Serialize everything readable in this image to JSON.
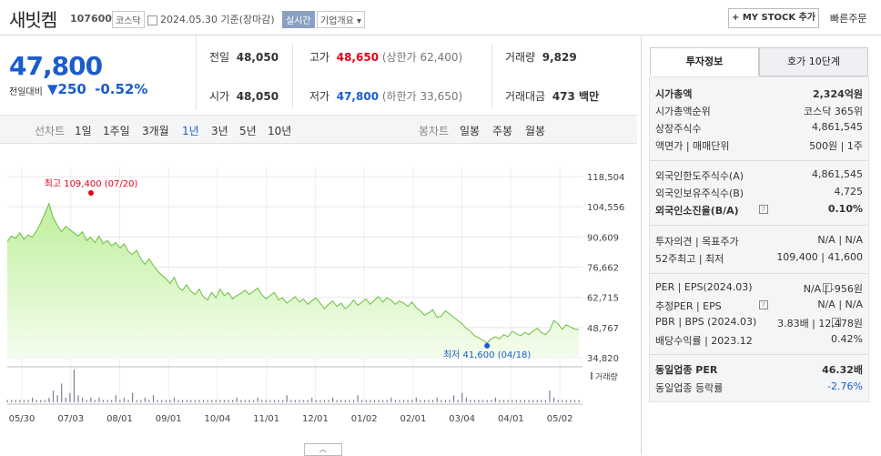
{
  "header": {
    "name": "새빗켐",
    "code": "107600",
    "market": "코스닥",
    "date": "2024.05.30 기준(장마감)",
    "realtime": "실시간",
    "overview": "기업개요",
    "mystock": "+ MY STOCK 추가",
    "quick_order": "빠른주문"
  },
  "price": {
    "current": "47,800",
    "change_label": "전일대비",
    "change": "250",
    "change_pct": "-0.52%",
    "prev_label": "전일",
    "prev": "48,050",
    "open_label": "시가",
    "open": "48,050",
    "high_label": "고가",
    "high": "48,650",
    "high_limit": "(상한가 62,400)",
    "low_label": "저가",
    "low": "47,800",
    "low_limit": "(하한가 33,650)",
    "volume_label": "거래량",
    "volume": "9,829",
    "amount_label": "거래대금",
    "amount": "473 백만"
  },
  "tabs": {
    "line_head": "선차트",
    "periods": [
      "1일",
      "1주일",
      "3개월",
      "1년",
      "3년",
      "5년",
      "10년"
    ],
    "selected": "1년",
    "candle_head": "봉차트",
    "candles": [
      "일봉",
      "주봉",
      "월봉"
    ]
  },
  "chart_data": {
    "type": "area",
    "title": "",
    "xlabel": "",
    "ylabel": "",
    "ylim": [
      34820,
      118504
    ],
    "yticks": [
      "118,504",
      "104,556",
      "90,609",
      "76,662",
      "62,715",
      "48,767",
      "34,820"
    ],
    "x_labels": [
      "05/30",
      "07/03",
      "08/01",
      "09/01",
      "10/04",
      "11/01",
      "12/01",
      "01/02",
      "02/01",
      "03/04",
      "04/01",
      "05/02"
    ],
    "series": [
      {
        "values": [
          88500,
          91000,
          90000,
          92500,
          89500,
          91500,
          90500,
          93500,
          97000,
          101500,
          106000,
          99500,
          96000,
          93000,
          95500,
          94000,
          92500,
          91000,
          93000,
          89000,
          90500,
          88000,
          91000,
          87500,
          89000,
          86500,
          88000,
          85500,
          87500,
          84000,
          82500,
          84500,
          80500,
          78000,
          80500,
          77500,
          75000,
          73000,
          71500,
          69000,
          72000,
          67500,
          66000,
          68500,
          65500,
          64000,
          66500,
          63000,
          61500,
          65000,
          62500,
          66500,
          63500,
          65000,
          62000,
          63500,
          64500,
          66000,
          64000,
          65500,
          67000,
          64000,
          62000,
          63500,
          65000,
          61500,
          62500,
          60000,
          61500,
          63000,
          60500,
          62000,
          59500,
          61000,
          62500,
          60000,
          57500,
          59500,
          61000,
          58500,
          60000,
          57500,
          59000,
          61500,
          59000,
          60500,
          62000,
          59500,
          61500,
          63000,
          60500,
          62500,
          61500,
          59500,
          61000,
          60000,
          58500,
          60500,
          58000,
          56500,
          54500,
          55500,
          57000,
          53500,
          54000,
          56500,
          55000,
          53500,
          52000,
          50500,
          48500,
          47000,
          45000,
          44000,
          42800,
          41600,
          43500,
          44500,
          43500,
          45500,
          44500,
          47000,
          46000,
          45000,
          46500,
          45500,
          47000,
          48500,
          46500,
          45500,
          47500,
          52000,
          50500,
          48000,
          50000,
          49000,
          48050,
          47800
        ]
      }
    ],
    "max_label": "최고 109,400 (07/20)",
    "min_label": "최저 41,600 (04/18)",
    "volume_label": "거래량",
    "volume": [
      1,
      1,
      1,
      1,
      1,
      1,
      2,
      1,
      1,
      1,
      2,
      5,
      3,
      8,
      2,
      4,
      14,
      3,
      2,
      1,
      2,
      1,
      2,
      1,
      1,
      1,
      3,
      1,
      2,
      1,
      4,
      1,
      1,
      2,
      1,
      3,
      1,
      1,
      1,
      1,
      2,
      1,
      1,
      1,
      1,
      1,
      1,
      1,
      1,
      1,
      1,
      1,
      1,
      1,
      1,
      2,
      1,
      1,
      1,
      1,
      2,
      1,
      1,
      1,
      1,
      1,
      1,
      3,
      1,
      1,
      1,
      1,
      1,
      2,
      1,
      1,
      1,
      1,
      2,
      1,
      1,
      1,
      1,
      1,
      3,
      1,
      1,
      1,
      1,
      1,
      1,
      1,
      2,
      1,
      1,
      1,
      1,
      1,
      2,
      1,
      1,
      1,
      1,
      2,
      1,
      1,
      1,
      3,
      1,
      4,
      2,
      1,
      1,
      1,
      1,
      1,
      1,
      2,
      1,
      1,
      1,
      1,
      1,
      1,
      1,
      1,
      1,
      1,
      1,
      1,
      5,
      2,
      1,
      1,
      1,
      1,
      1,
      1
    ]
  },
  "side": {
    "tab_invest": "투자정보",
    "tab_orderbook": "호가 10단계",
    "rows": [
      {
        "label": "시가총액",
        "value": "2,324억원",
        "bold": true
      },
      {
        "label": "시가총액순위",
        "value": "코스닥 365위"
      },
      {
        "label": "상장주식수",
        "value": "4,861,545"
      },
      {
        "label": "액면가 | 매매단위",
        "value": "500원 | 1주"
      },
      {
        "label": "외국인한도주식수(A)",
        "value": "4,861,545"
      },
      {
        "label": "외국인보유주식수(B)",
        "value": "4,725"
      },
      {
        "label": "외국인소진율(B/A)",
        "value": "0.10%",
        "bold": true
      },
      {
        "label": "투자의견 | 목표주가",
        "value": "N/A | N/A"
      },
      {
        "label": "52주최고 | 최저",
        "value": "109,400 | 41,600"
      },
      {
        "label": "PER | EPS(2024.03)",
        "value": "N/A | -956원"
      },
      {
        "label": "추정PER | EPS",
        "value": "N/A | N/A"
      },
      {
        "label": "PBR | BPS (2024.03)",
        "value": "3.83배 | 12,478원"
      },
      {
        "label": "배당수익률 | 2023.12",
        "value": "0.42%"
      },
      {
        "label": "동일업종 PER",
        "value": "46.32배",
        "bold": true
      },
      {
        "label": "동일업종 등락률",
        "value": "-2.76%",
        "blue": true
      }
    ]
  }
}
